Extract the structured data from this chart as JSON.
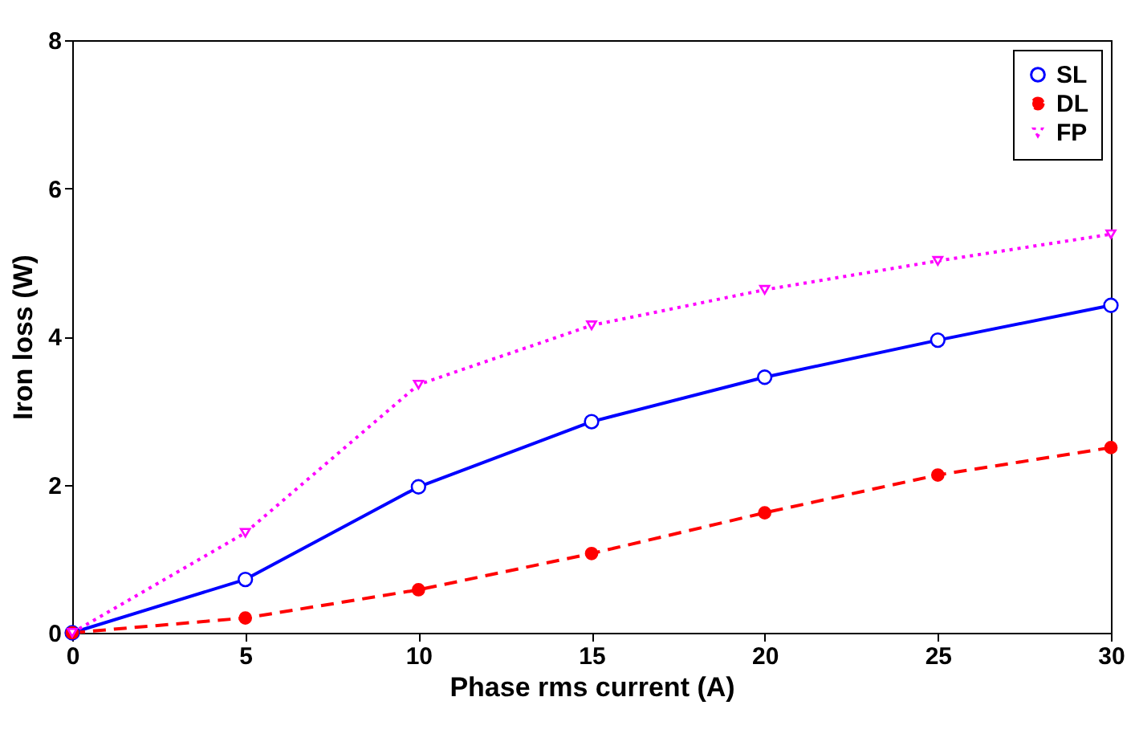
{
  "chart_data": {
    "type": "line",
    "xlabel": "Phase rms current (A)",
    "ylabel": "Iron loss (W)",
    "x": [
      0,
      5,
      10,
      15,
      20,
      25,
      30
    ],
    "xlim": [
      0,
      30
    ],
    "xticks": [
      0,
      5,
      10,
      15,
      20,
      25,
      30
    ],
    "ylim": [
      0,
      8
    ],
    "yticks": [
      0,
      2,
      4,
      6,
      8
    ],
    "grid": false,
    "legend": "top right",
    "series": [
      {
        "name": "SL",
        "color": "#0000ff",
        "marker": "circle",
        "line_style": "solid",
        "values": [
          0,
          0.72,
          1.97,
          2.85,
          3.45,
          3.95,
          4.42
        ]
      },
      {
        "name": "DL",
        "color": "#ff0000",
        "marker": "point",
        "line_style": "dashed",
        "values": [
          0,
          0.2,
          0.58,
          1.07,
          1.62,
          2.13,
          2.5
        ]
      },
      {
        "name": "FP",
        "color": "#ff00ff",
        "marker": "triangle-down",
        "line_style": "dotted",
        "values": [
          0,
          1.35,
          3.35,
          4.15,
          4.63,
          5.02,
          5.38
        ]
      }
    ]
  }
}
